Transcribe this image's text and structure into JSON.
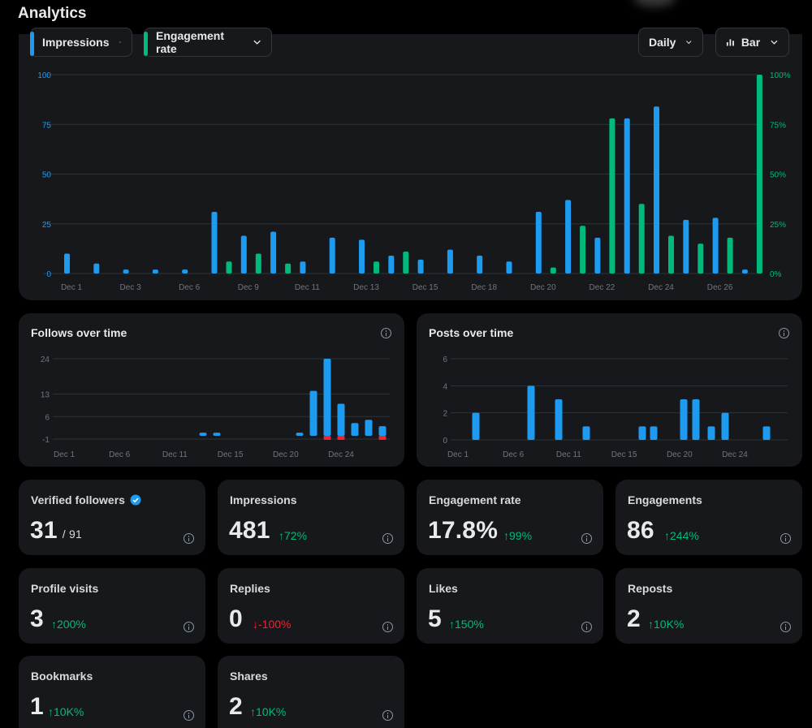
{
  "header": {
    "title": "Analytics"
  },
  "main_chart": {
    "controls": {
      "metric1": "Impressions",
      "metric2": "Engagement rate",
      "interval": "Daily",
      "chart_type": "Bar"
    },
    "colors": {
      "impressions": "#1d9bf0",
      "engagement": "#00ba7c"
    },
    "left_ticks": [
      "100",
      "75",
      "50",
      "25",
      "0"
    ],
    "right_ticks": [
      "100%",
      "75%",
      "50%",
      "25%",
      "0%"
    ],
    "x_labels": [
      "Dec 1",
      "Dec 3",
      "Dec 6",
      "Dec 9",
      "Dec 11",
      "Dec 13",
      "Dec 15",
      "Dec 18",
      "Dec 20",
      "Dec 22",
      "Dec 24",
      "Dec 26"
    ]
  },
  "follows": {
    "title": "Follows over time",
    "ticks": [
      "24",
      "13",
      "6",
      "-1"
    ],
    "x_labels": [
      "Dec 1",
      "Dec 6",
      "Dec 11",
      "Dec 15",
      "Dec 20",
      "Dec 24"
    ]
  },
  "posts": {
    "title": "Posts over time",
    "ticks": [
      "6",
      "4",
      "2",
      "0"
    ],
    "x_labels": [
      "Dec 1",
      "Dec 6",
      "Dec 11",
      "Dec 15",
      "Dec 20",
      "Dec 24"
    ]
  },
  "stats": [
    {
      "label": "Verified followers",
      "value": "31",
      "sub": "/ 91",
      "change": ""
    },
    {
      "label": "Impressions",
      "value": "481",
      "change": "↑72%",
      "dir": "up"
    },
    {
      "label": "Engagement rate",
      "value": "17.8%",
      "change": "↑99%",
      "dir": "up"
    },
    {
      "label": "Engagements",
      "value": "86",
      "change": "↑244%",
      "dir": "up"
    },
    {
      "label": "Profile visits",
      "value": "3",
      "change": "↑200%",
      "dir": "up"
    },
    {
      "label": "Replies",
      "value": "0",
      "change": "↓-100%",
      "dir": "down"
    },
    {
      "label": "Likes",
      "value": "5",
      "change": "↑150%",
      "dir": "up"
    },
    {
      "label": "Reposts",
      "value": "2",
      "change": "↑10K%",
      "dir": "up"
    },
    {
      "label": "Bookmarks",
      "value": "1",
      "change": "↑10K%",
      "dir": "up"
    },
    {
      "label": "Shares",
      "value": "2",
      "change": "↑10K%",
      "dir": "up"
    }
  ],
  "chart_data": [
    {
      "type": "bar",
      "x_labels": [
        "Dec 1",
        "Dec 3",
        "Dec 6",
        "Dec 9",
        "Dec 11",
        "Dec 13",
        "Dec 15",
        "Dec 18",
        "Dec 20",
        "Dec 22",
        "Dec 24",
        "Dec 26"
      ],
      "ylim": [
        0,
        100
      ],
      "y2lim": [
        0,
        100
      ],
      "series": [
        {
          "name": "Impressions",
          "axis": "left",
          "values": [
            10,
            5,
            2,
            2,
            2,
            31,
            19,
            21,
            6,
            18,
            17,
            9,
            7,
            12,
            9,
            6,
            31,
            37,
            18,
            78,
            84,
            27,
            28,
            2
          ]
        },
        {
          "name": "Engagement rate",
          "axis": "right",
          "values": [
            0,
            0,
            0,
            0,
            0,
            6,
            10,
            5,
            0,
            0,
            6,
            11,
            0,
            0,
            0,
            0,
            3,
            24,
            78,
            35,
            19,
            15,
            18,
            100
          ]
        }
      ]
    },
    {
      "type": "bar",
      "title": "Follows over time",
      "x_labels": [
        "Dec 1",
        "Dec 6",
        "Dec 11",
        "Dec 15",
        "Dec 20",
        "Dec 24"
      ],
      "ylim": [
        -1,
        24
      ],
      "values": [
        1,
        1,
        1,
        14,
        24,
        10,
        4,
        5,
        3
      ],
      "negative": [
        0,
        0,
        0,
        0,
        -1,
        -1,
        0,
        0,
        -1
      ]
    },
    {
      "type": "bar",
      "title": "Posts over time",
      "x_labels": [
        "Dec 1",
        "Dec 6",
        "Dec 11",
        "Dec 15",
        "Dec 20",
        "Dec 24"
      ],
      "ylim": [
        0,
        6
      ],
      "values": [
        2,
        4,
        3,
        1,
        1,
        1,
        3,
        3,
        1,
        2,
        1
      ]
    }
  ]
}
